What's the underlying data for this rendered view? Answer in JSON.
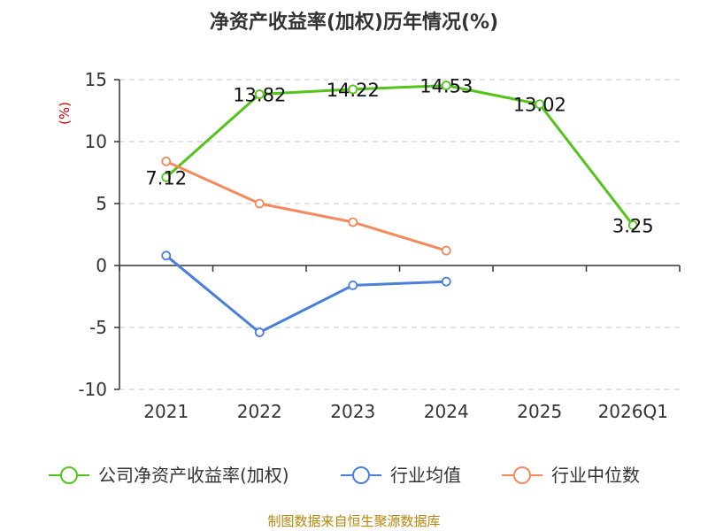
{
  "chart_data": {
    "type": "line",
    "title": "净资产收益率(加权)历年情况(%)",
    "ylabel": "(%)",
    "categories": [
      "2021",
      "2022",
      "2023",
      "2024",
      "2025",
      "2026Q1"
    ],
    "ylim": [
      -10,
      15
    ],
    "yticks": [
      15,
      10,
      5,
      0,
      -5,
      -10
    ],
    "grid": true,
    "legend_position": "bottom",
    "series": [
      {
        "name": "公司净资产收益率(加权)",
        "color": "#52c41a",
        "values": [
          7.12,
          13.82,
          14.22,
          14.53,
          13.02,
          3.25
        ],
        "labels": [
          "7.12",
          "13.82",
          "14.22",
          "14.53",
          "13.02",
          "3.25"
        ]
      },
      {
        "name": "行业均值",
        "color": "#4a7fdb",
        "values": [
          0.8,
          -5.4,
          -1.6,
          -1.3,
          null,
          null
        ]
      },
      {
        "name": "行业中位数",
        "color": "#f5895a",
        "values": [
          8.4,
          5.0,
          3.5,
          1.2,
          null,
          null
        ]
      }
    ]
  },
  "source": "制图数据来自恒生聚源数据库"
}
